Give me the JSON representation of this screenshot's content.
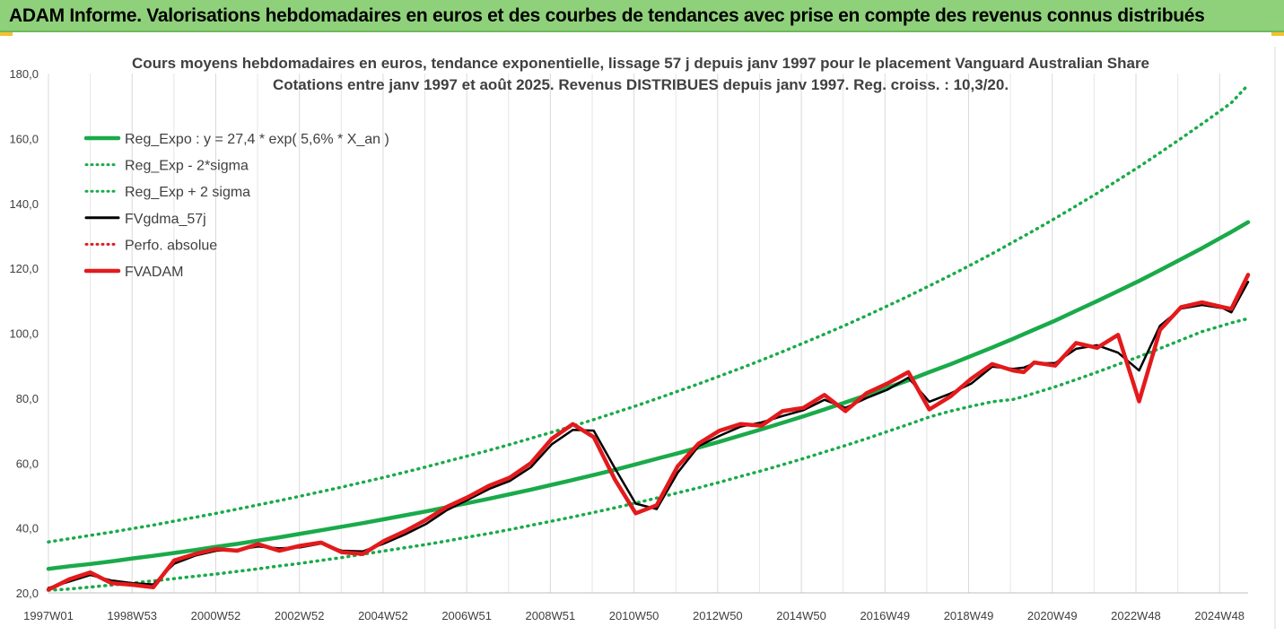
{
  "banner": {
    "title": "ADAM Informe. Valorisations hebdomadaires en euros et des courbes de tendances avec prise en compte des revenus connus distribués"
  },
  "chart_data": {
    "type": "line",
    "title": "Cours moyens hebdomadaires en euros, tendance exponentielle, lissage 57 j depuis janv 1997 pour le placement Vanguard Australian Share",
    "subtitle": "Cotations entre janv 1997 et août 2025. Revenus DISTRIBUES depuis janv 1997. Reg. croiss. : 10,3/20.",
    "xlabel": "",
    "ylabel": "",
    "ylim": [
      20,
      180
    ],
    "y_ticks": [
      "20,0",
      "40,0",
      "60,0",
      "80,0",
      "100,0",
      "120,0",
      "140,0",
      "160,0",
      "180,0"
    ],
    "x_ticks": [
      "1997W01",
      "1998W53",
      "2000W52",
      "2002W52",
      "2004W52",
      "2006W51",
      "2008W51",
      "2010W50",
      "2012W50",
      "2014W50",
      "2016W49",
      "2018W49",
      "2020W49",
      "2022W48",
      "2024W48"
    ],
    "grid": "vertical",
    "legend_position": "top-left",
    "x_years": [
      1997.0,
      1997.5,
      1998.0,
      1998.5,
      1999.0,
      1999.5,
      2000.0,
      2000.5,
      2001.0,
      2001.5,
      2002.0,
      2002.5,
      2003.0,
      2003.5,
      2004.0,
      2004.5,
      2005.0,
      2005.5,
      2006.0,
      2006.5,
      2007.0,
      2007.5,
      2008.0,
      2008.5,
      2009.0,
      2009.5,
      2010.0,
      2010.5,
      2011.0,
      2011.5,
      2012.0,
      2012.5,
      2013.0,
      2013.5,
      2014.0,
      2014.5,
      2015.0,
      2015.5,
      2016.0,
      2016.5,
      2017.0,
      2017.5,
      2018.0,
      2018.5,
      2019.0,
      2019.5,
      2020.0,
      2020.25,
      2020.5,
      2021.0,
      2021.5,
      2022.0,
      2022.5,
      2023.0,
      2023.5,
      2024.0,
      2024.5,
      2025.0,
      2025.2,
      2025.6
    ],
    "series": [
      {
        "name": "Reg_Expo : y = 27,4 * exp( 5,6% *  X_an )",
        "color": "#1aaa4a",
        "style": "solid-thick",
        "values": [
          27.4,
          28.2,
          28.9,
          29.7,
          30.6,
          31.4,
          32.3,
          33.2,
          34.2,
          35.1,
          36.1,
          37.1,
          38.2,
          39.3,
          40.4,
          41.5,
          42.7,
          43.9,
          45.1,
          46.4,
          47.7,
          49.0,
          50.4,
          51.8,
          53.3,
          54.8,
          56.3,
          57.9,
          59.6,
          61.3,
          63.0,
          64.8,
          66.6,
          68.5,
          70.4,
          72.4,
          74.4,
          76.5,
          78.7,
          80.9,
          83.2,
          85.5,
          88.0,
          90.4,
          93.0,
          95.6,
          98.3,
          99.7,
          101.1,
          103.9,
          106.9,
          109.9,
          113.0,
          116.1,
          119.4,
          122.8,
          126.2,
          129.8,
          131.2,
          134.2
        ]
      },
      {
        "name": "Reg_Exp - 2*sigma",
        "color": "#1aaa4a",
        "style": "dotted",
        "values": [
          20.8,
          21.2,
          21.8,
          22.4,
          23.0,
          23.7,
          24.4,
          25.1,
          25.8,
          26.6,
          27.4,
          28.3,
          29.1,
          30.0,
          30.9,
          31.9,
          32.9,
          33.9,
          34.9,
          36.0,
          37.2,
          38.3,
          39.5,
          40.8,
          42.1,
          43.4,
          44.8,
          46.2,
          47.7,
          49.2,
          50.8,
          52.4,
          54.1,
          55.9,
          57.6,
          59.5,
          61.4,
          63.4,
          65.4,
          67.5,
          69.7,
          71.9,
          74.2,
          76.0,
          77.5,
          78.9,
          79.6,
          80.5,
          81.5,
          83.5,
          85.7,
          88.0,
          90.4,
          92.8,
          95.3,
          97.9,
          100.5,
          102.4,
          103.2,
          104.5
        ]
      },
      {
        "name": "Reg_Exp + 2 sigma",
        "color": "#1aaa4a",
        "style": "dotted",
        "values": [
          35.7,
          36.7,
          37.7,
          38.7,
          39.8,
          40.9,
          42.1,
          43.3,
          44.5,
          45.8,
          47.1,
          48.4,
          49.8,
          51.2,
          52.6,
          54.1,
          55.6,
          57.2,
          58.8,
          60.5,
          62.2,
          63.9,
          65.7,
          67.6,
          69.5,
          71.4,
          73.4,
          75.5,
          77.6,
          79.8,
          82.1,
          84.4,
          86.8,
          89.2,
          91.7,
          94.3,
          97.0,
          99.7,
          102.5,
          105.4,
          108.4,
          111.4,
          114.6,
          117.8,
          121.1,
          124.5,
          128.1,
          129.9,
          131.7,
          135.4,
          139.2,
          143.1,
          147.2,
          151.3,
          155.6,
          160.0,
          164.5,
          169.1,
          171.0,
          176.5
        ]
      },
      {
        "name": "FVgdma_57j",
        "color": "#000000",
        "style": "solid",
        "values": [
          21.5,
          23.5,
          25.5,
          23.8,
          23.0,
          22.6,
          29.0,
          31.5,
          33.0,
          33.3,
          34.3,
          33.7,
          34.0,
          35.2,
          33.0,
          32.8,
          35.2,
          38.0,
          41.2,
          45.5,
          48.7,
          52.0,
          54.5,
          58.7,
          65.8,
          70.2,
          70.0,
          58.5,
          47.5,
          45.8,
          57.0,
          65.2,
          68.4,
          71.2,
          72.5,
          74.5,
          76.3,
          79.5,
          77.0,
          80.0,
          82.6,
          86.3,
          78.9,
          81.4,
          84.5,
          89.7,
          89.0,
          89.4,
          90.7,
          90.8,
          95.2,
          96.3,
          94.0,
          88.5,
          102.3,
          107.6,
          108.7,
          107.7,
          106.4,
          115.8
        ]
      },
      {
        "name": "Perfo. absolue",
        "color": "#e31a1c",
        "style": "dotted",
        "values": []
      },
      {
        "name": "FVADAM",
        "color": "#e31a1c",
        "style": "solid-thick",
        "values": [
          21.0,
          24.2,
          26.3,
          23.0,
          22.5,
          21.7,
          30.0,
          32.0,
          33.5,
          33.0,
          35.0,
          33.0,
          34.5,
          35.5,
          32.5,
          32.0,
          36.0,
          39.0,
          42.5,
          46.5,
          49.5,
          53.0,
          55.5,
          60.0,
          67.5,
          72.0,
          68.0,
          55.0,
          44.5,
          47.0,
          59.0,
          66.0,
          70.0,
          72.0,
          71.5,
          76.0,
          77.0,
          81.0,
          76.0,
          81.5,
          84.5,
          88.0,
          76.5,
          80.5,
          86.0,
          90.5,
          88.5,
          88.0,
          91.0,
          90.0,
          97.0,
          95.5,
          99.5,
          79.0,
          101.0,
          108.0,
          109.5,
          108.0,
          107.5,
          118.0
        ]
      }
    ]
  }
}
